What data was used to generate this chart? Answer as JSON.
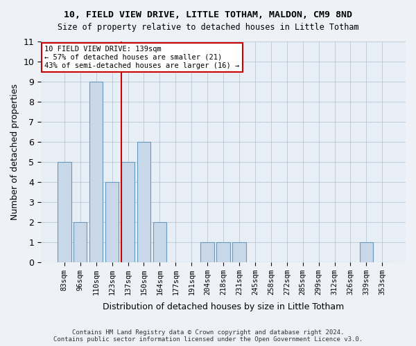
{
  "title1": "10, FIELD VIEW DRIVE, LITTLE TOTHAM, MALDON, CM9 8ND",
  "title2": "Size of property relative to detached houses in Little Totham",
  "xlabel": "Distribution of detached houses by size in Little Totham",
  "ylabel": "Number of detached properties",
  "footer": "Contains HM Land Registry data © Crown copyright and database right 2024.\nContains public sector information licensed under the Open Government Licence v3.0.",
  "bins": [
    "83sqm",
    "96sqm",
    "110sqm",
    "123sqm",
    "137sqm",
    "150sqm",
    "164sqm",
    "177sqm",
    "191sqm",
    "204sqm",
    "218sqm",
    "231sqm",
    "245sqm",
    "258sqm",
    "272sqm",
    "285sqm",
    "299sqm",
    "312sqm",
    "326sqm",
    "339sqm",
    "353sqm"
  ],
  "values": [
    5,
    2,
    9,
    4,
    5,
    6,
    2,
    0,
    0,
    1,
    1,
    1,
    0,
    0,
    0,
    0,
    0,
    0,
    0,
    1,
    0
  ],
  "bar_color": "#c8d8e8",
  "bar_edge_color": "#6699bb",
  "highlight_line_index": 4,
  "highlight_line_color": "#cc0000",
  "annotation_text": "10 FIELD VIEW DRIVE: 139sqm\n← 57% of detached houses are smaller (21)\n43% of semi-detached houses are larger (16) →",
  "ylim": [
    0,
    11
  ],
  "yticks": [
    0,
    1,
    2,
    3,
    4,
    5,
    6,
    7,
    8,
    9,
    10,
    11
  ],
  "background_color": "#eef2f7",
  "plot_bg_color": "#e8eef5"
}
